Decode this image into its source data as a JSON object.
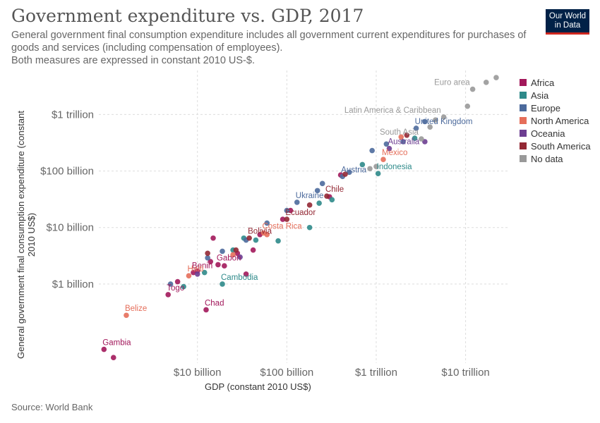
{
  "header": {
    "title": "Government expenditure vs. GDP, 2017",
    "subtitle_lines": [
      "General government final consumption expenditure includes all government current expenditures for purchases of",
      "goods and services (including compensation of employees).",
      "Both measures are expressed in constant 2010 US-$."
    ],
    "logo_line1": "Our World",
    "logo_line2": "in Data"
  },
  "footer": {
    "source": "Source: World Bank"
  },
  "colors": {
    "Africa": "#a2185b",
    "Asia": "#2e8a8a",
    "Europe": "#4c6a9c",
    "North America": "#e56e5a",
    "Oceania": "#6d3e91",
    "South America": "#932834",
    "No data": "#999999"
  },
  "chart_data": {
    "type": "scatter",
    "xlabel": "GDP (constant 2010 US$)",
    "ylabel": "General government final consumption expenditure (constant 2010 US$)",
    "x_scale": "log",
    "y_scale": "log",
    "xlim": [
      600000000,
      30000000000000
    ],
    "ylim": [
      40000000,
      6000000000000
    ],
    "x_ticks": [
      {
        "value": 10000000000,
        "label": "$10 billion"
      },
      {
        "value": 100000000000,
        "label": "$100 billion"
      },
      {
        "value": 1000000000000,
        "label": "$1 trillion"
      },
      {
        "value": 10000000000000,
        "label": "$10 trillion"
      }
    ],
    "y_ticks": [
      {
        "value": 1000000000,
        "label": "$1 billion"
      },
      {
        "value": 10000000000,
        "label": "$10 billion"
      },
      {
        "value": 100000000000,
        "label": "$100 billion"
      },
      {
        "value": 1000000000000,
        "label": "$1 trillion"
      }
    ],
    "grid": true,
    "legend": {
      "position": "right",
      "entries": [
        "Africa",
        "Asia",
        "Europe",
        "North America",
        "Oceania",
        "South America",
        "No data"
      ]
    },
    "series": [
      {
        "name": "Africa",
        "points": [
          {
            "label": "Gambia",
            "x": 900000000,
            "y": 70000000
          },
          {
            "x": 1150000000,
            "y": 50000000
          },
          {
            "label": "Togo",
            "x": 4700000000,
            "y": 650000000
          },
          {
            "label": "Benin",
            "x": 9000000000,
            "y": 1600000000
          },
          {
            "label": "Chad",
            "x": 12500000000,
            "y": 350000000
          },
          {
            "label": "Gabon",
            "x": 17000000000,
            "y": 2200000000
          },
          {
            "x": 6000000000,
            "y": 1100000000
          },
          {
            "x": 10000000000,
            "y": 1700000000
          },
          {
            "x": 15000000000,
            "y": 6500000000
          },
          {
            "x": 14000000000,
            "y": 2500000000
          },
          {
            "x": 20000000000,
            "y": 2100000000
          },
          {
            "x": 28000000000,
            "y": 3500000000
          },
          {
            "x": 35000000000,
            "y": 1500000000
          },
          {
            "x": 42000000000,
            "y": 4000000000
          },
          {
            "x": 50000000000,
            "y": 7500000000
          },
          {
            "x": 90000000000,
            "y": 14000000000
          },
          {
            "x": 110000000000,
            "y": 20000000000
          },
          {
            "x": 300000000000,
            "y": 35000000000
          },
          {
            "x": 400000000000,
            "y": 85000000000
          }
        ]
      },
      {
        "name": "Asia",
        "points": [
          {
            "label": "Cambodia",
            "x": 19000000000,
            "y": 1000000000
          },
          {
            "label": "Indonesia",
            "x": 1050000000000,
            "y": 90000000000
          },
          {
            "x": 7000000000,
            "y": 900000000
          },
          {
            "x": 12000000000,
            "y": 1600000000
          },
          {
            "x": 25000000000,
            "y": 4000000000
          },
          {
            "x": 33000000000,
            "y": 6500000000
          },
          {
            "x": 45000000000,
            "y": 6000000000
          },
          {
            "x": 80000000000,
            "y": 5800000000
          },
          {
            "x": 180000000000,
            "y": 10000000000
          },
          {
            "x": 230000000000,
            "y": 27000000000
          },
          {
            "x": 320000000000,
            "y": 31000000000
          },
          {
            "x": 700000000000,
            "y": 130000000000
          },
          {
            "x": 2700000000000,
            "y": 380000000000
          }
        ]
      },
      {
        "name": "Europe",
        "points": [
          {
            "label": "United Kingdom",
            "x": 2800000000000,
            "y": 570000000000
          },
          {
            "label": "Ukraine",
            "x": 130000000000,
            "y": 28000000000
          },
          {
            "label": "Austria",
            "x": 420000000000,
            "y": 80000000000
          },
          {
            "x": 5000000000,
            "y": 1000000000
          },
          {
            "x": 13000000000,
            "y": 2900000000
          },
          {
            "x": 19000000000,
            "y": 3800000000
          },
          {
            "x": 35000000000,
            "y": 6000000000
          },
          {
            "x": 60000000000,
            "y": 12000000000
          },
          {
            "x": 100000000000,
            "y": 20000000000
          },
          {
            "x": 220000000000,
            "y": 45000000000
          },
          {
            "x": 250000000000,
            "y": 60000000000
          },
          {
            "x": 500000000000,
            "y": 95000000000
          },
          {
            "x": 900000000000,
            "y": 230000000000
          },
          {
            "x": 1300000000000,
            "y": 300000000000
          },
          {
            "x": 2000000000000,
            "y": 330000000000
          },
          {
            "x": 3500000000000,
            "y": 750000000000
          }
        ]
      },
      {
        "name": "North America",
        "points": [
          {
            "label": "Belize",
            "x": 1600000000,
            "y": 280000000
          },
          {
            "label": "Haiti",
            "x": 8000000000,
            "y": 1400000000
          },
          {
            "label": "Costa Rica",
            "x": 55000000000,
            "y": 8000000000
          },
          {
            "label": "Mexico",
            "x": 1200000000000,
            "y": 160000000000
          },
          {
            "x": 25000000000,
            "y": 3300000000
          },
          {
            "x": 60000000000,
            "y": 7500000000
          },
          {
            "x": 1900000000000,
            "y": 400000000000
          }
        ]
      },
      {
        "name": "Oceania",
        "points": [
          {
            "label": "Australia",
            "x": 1400000000000,
            "y": 250000000000
          },
          {
            "x": 10000000000,
            "y": 1500000000
          },
          {
            "x": 30000000000,
            "y": 3000000000
          },
          {
            "x": 3500000000000,
            "y": 330000000000
          }
        ]
      },
      {
        "name": "South America",
        "points": [
          {
            "label": "Bolivia",
            "x": 38000000000,
            "y": 6500000000
          },
          {
            "label": "Ecuador",
            "x": 100000000000,
            "y": 14000000000
          },
          {
            "label": "Chile",
            "x": 280000000000,
            "y": 36000000000
          },
          {
            "x": 13000000000,
            "y": 3500000000
          },
          {
            "x": 27000000000,
            "y": 4000000000
          },
          {
            "x": 180000000000,
            "y": 25000000000
          },
          {
            "x": 450000000000,
            "y": 88000000000
          },
          {
            "x": 2200000000000,
            "y": 430000000000
          }
        ]
      },
      {
        "name": "No data",
        "points": [
          {
            "label": "Euro area",
            "x": 12000000000000,
            "y": 2800000000000
          },
          {
            "label": "Latin America & Caribbean",
            "x": 5700000000000,
            "y": 900000000000
          },
          {
            "label": "South Asia",
            "x": 3200000000000,
            "y": 370000000000
          },
          {
            "x": 4000000000000,
            "y": 600000000000
          },
          {
            "x": 4600000000000,
            "y": 800000000000
          },
          {
            "x": 10500000000000,
            "y": 1400000000000
          },
          {
            "x": 17000000000000,
            "y": 3700000000000
          },
          {
            "x": 22000000000000,
            "y": 4500000000000
          },
          {
            "x": 850000000000,
            "y": 110000000000
          },
          {
            "x": 1000000000000,
            "y": 120000000000
          }
        ]
      }
    ]
  }
}
